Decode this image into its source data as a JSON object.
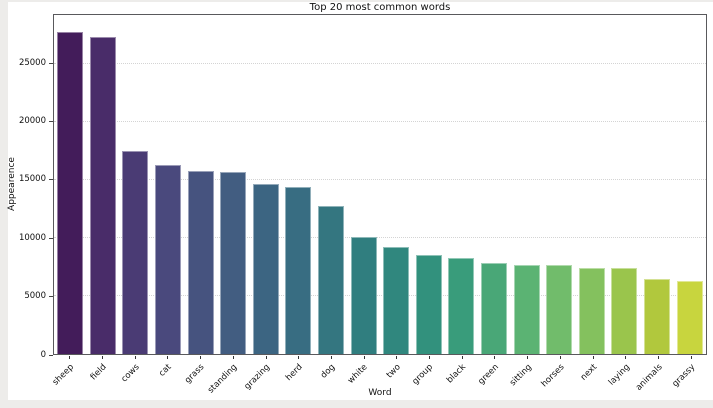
{
  "chart_data": {
    "type": "bar",
    "title": "Top 20 most common words",
    "xlabel": "Word",
    "ylabel": "Appearence",
    "categories": [
      "sheep",
      "field",
      "cows",
      "cat",
      "grass",
      "standing",
      "grazing",
      "herd",
      "dog",
      "white",
      "two",
      "group",
      "black",
      "green",
      "sitting",
      "horses",
      "next",
      "laying",
      "animals",
      "grassy"
    ],
    "values": [
      27750,
      27300,
      17450,
      16300,
      15800,
      15700,
      14650,
      14350,
      12750,
      10100,
      9200,
      8500,
      8300,
      7800,
      7700,
      7700,
      7450,
      7400,
      6500,
      6300
    ],
    "bar_colors": [
      "#431c5a",
      "#492c69",
      "#4a3b74",
      "#4a497d",
      "#46537f",
      "#425d81",
      "#3c6582",
      "#386d82",
      "#347680",
      "#307e7f",
      "#30877e",
      "#32917d",
      "#399c7b",
      "#49a777",
      "#5bb373",
      "#71bc6b",
      "#84c15e",
      "#9ac54c",
      "#b1c83d",
      "#c8d53e"
    ],
    "ylim": [
      0,
      29200
    ],
    "yticks": [
      0,
      5000,
      10000,
      15000,
      20000,
      25000
    ],
    "xtick_rotation_deg": 45,
    "grid": "horizontal dotted",
    "legend": "none"
  },
  "colors": {
    "page_background": "#edecea",
    "figure_background": "#ffffff",
    "spine": "#59595c",
    "gridline": "#d4d4d4",
    "text": "#111111"
  }
}
